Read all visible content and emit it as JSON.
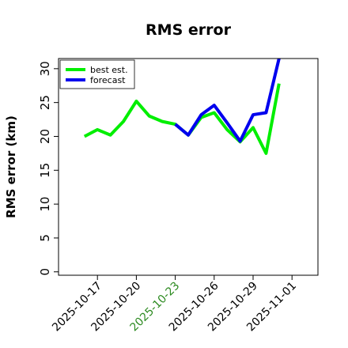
{
  "chart_data": {
    "type": "line",
    "title": "RMS error",
    "xlabel": "",
    "ylabel": "RMS error (km)",
    "ylim": [
      -0.5,
      31.5
    ],
    "yticks": [
      0,
      5,
      10,
      15,
      20,
      25,
      30
    ],
    "xlim": [
      "2025-10-14",
      "2025-11-03"
    ],
    "xticks": [
      {
        "label": "2025-10-17",
        "color": "#000000"
      },
      {
        "label": "2025-10-20",
        "color": "#000000"
      },
      {
        "label": "2025-10-23",
        "color": "#2e8b22"
      },
      {
        "label": "2025-10-26",
        "color": "#000000"
      },
      {
        "label": "2025-10-29",
        "color": "#000000"
      },
      {
        "label": "2025-11-01",
        "color": "#000000"
      }
    ],
    "grid": false,
    "legend_position": "top-left",
    "series": [
      {
        "name": "best est.",
        "color": "#00ee00",
        "x": [
          "2025-10-16",
          "2025-10-17",
          "2025-10-18",
          "2025-10-19",
          "2025-10-20",
          "2025-10-21",
          "2025-10-22",
          "2025-10-23",
          "2025-10-24",
          "2025-10-25",
          "2025-10-26",
          "2025-10-27",
          "2025-10-28",
          "2025-10-29",
          "2025-10-30",
          "2025-10-31"
        ],
        "values": [
          20.0,
          21.0,
          20.2,
          22.2,
          25.2,
          23.0,
          22.2,
          21.8,
          20.2,
          22.8,
          23.5,
          21.0,
          19.2,
          21.3,
          17.5,
          27.8
        ]
      },
      {
        "name": "forecast",
        "color": "#0000ee",
        "x": [
          "2025-10-23",
          "2025-10-24",
          "2025-10-25",
          "2025-10-26",
          "2025-10-27",
          "2025-10-28",
          "2025-10-29",
          "2025-10-30",
          "2025-10-31"
        ],
        "values": [
          21.8,
          20.2,
          23.2,
          24.6,
          22.0,
          19.3,
          23.2,
          23.5,
          31.5
        ]
      }
    ]
  }
}
